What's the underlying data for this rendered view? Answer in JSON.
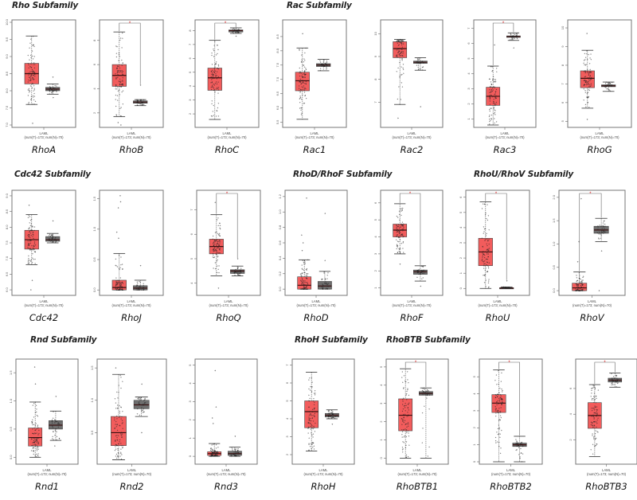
{
  "figure": {
    "colors": {
      "tumor": "#f25c5c",
      "normal": "#6e6e6e",
      "significance": "#e02020",
      "frame": "#777777"
    }
  },
  "subfamilies": [
    {
      "id": "rho",
      "label": "Rho Subfamily"
    },
    {
      "id": "rac",
      "label": "Rac Subfamily"
    },
    {
      "id": "cdc42",
      "label": "Cdc42 Subfamily"
    },
    {
      "id": "rhod",
      "label": "RhoD/RhoF Subfamily"
    },
    {
      "id": "rhou",
      "label": "RhoU/RhoV Subfamily"
    },
    {
      "id": "rnd",
      "label": "Rnd Subfamily"
    },
    {
      "id": "rhoh",
      "label": "RhoH Subfamily"
    },
    {
      "id": "rhobtb",
      "label": "RhoBTB Subfamily"
    }
  ],
  "chart_data": [
    {
      "type": "box",
      "gene": "RhoA",
      "subfamily": "Rho Subfamily",
      "xlabel": "LAML",
      "xsub": "(num(T)=173; num(N)=70)",
      "ylim": [
        7.0,
        10.0
      ],
      "yticks": [
        "7.0",
        "7.5",
        "8.0",
        "8.5",
        "9.0",
        "9.5",
        "10.0"
      ],
      "significant": false,
      "tumor": {
        "min": 7.6,
        "q1": 8.2,
        "median": 8.5,
        "q3": 8.8,
        "max": 9.6,
        "outliers": [
          7.05
        ]
      },
      "normal": {
        "min": 7.9,
        "q1": 8.0,
        "median": 8.05,
        "q3": 8.1,
        "max": 8.2,
        "outliers": [
          8.4,
          7.8
        ]
      }
    },
    {
      "type": "box",
      "gene": "RhoB",
      "subfamily": "Rho Subfamily",
      "xlabel": "LAML",
      "xsub": "(num(T)=173; num(N)=70)",
      "ylim": [
        1.0,
        9.5
      ],
      "yticks": [
        "2",
        "4",
        "6",
        "8"
      ],
      "significant": true,
      "tumor": {
        "min": 1.7,
        "q1": 4.2,
        "median": 5.1,
        "q3": 6.0,
        "max": 8.7,
        "outliers": [
          1.2,
          1.0
        ]
      },
      "normal": {
        "min": 2.6,
        "q1": 2.8,
        "median": 2.9,
        "q3": 3.0,
        "max": 3.1,
        "outliers": [
          4.3
        ]
      }
    },
    {
      "type": "box",
      "gene": "RhoC",
      "subfamily": "Rho Subfamily",
      "xlabel": "LAML",
      "xsub": "(num(T)=173; num(N)=70)",
      "ylim": [
        1.2,
        8.6
      ],
      "yticks": [
        "2",
        "3",
        "4",
        "5",
        "6",
        "7",
        "8"
      ],
      "significant": true,
      "tumor": {
        "min": 1.6,
        "q1": 3.7,
        "median": 4.6,
        "q3": 5.3,
        "max": 7.3,
        "outliers": []
      },
      "normal": {
        "min": 7.8,
        "q1": 7.9,
        "median": 8.0,
        "q3": 8.05,
        "max": 8.2,
        "outliers": [
          7.6
        ]
      }
    },
    {
      "type": "box",
      "gene": "Rac1",
      "subfamily": "Rac Subfamily",
      "xlabel": "LAML",
      "xsub": "(num(T)=173; num(N)=70)",
      "ylim": [
        5.4,
        9.0
      ],
      "yticks": [
        "5.5",
        "6.0",
        "6.5",
        "7.0",
        "7.5",
        "8.0",
        "8.5"
      ],
      "significant": false,
      "tumor": {
        "min": 5.6,
        "q1": 6.6,
        "median": 6.95,
        "q3": 7.25,
        "max": 8.1,
        "outliers": [
          8.6
        ]
      },
      "normal": {
        "min": 7.3,
        "q1": 7.45,
        "median": 7.5,
        "q3": 7.55,
        "max": 7.7,
        "outliers": []
      }
    },
    {
      "type": "box",
      "gene": "Rac2",
      "subfamily": "Rac Subfamily",
      "xlabel": "LAML",
      "xsub": "(num(T)=173; num(N)=70)",
      "ylim": [
        6.0,
        10.5
      ],
      "yticks": [
        "7",
        "8",
        "9",
        "10"
      ],
      "significant": false,
      "tumor": {
        "min": 6.9,
        "q1": 8.95,
        "median": 9.35,
        "q3": 9.65,
        "max": 9.75,
        "outliers": [
          6.3
        ]
      },
      "normal": {
        "min": 8.4,
        "q1": 8.7,
        "median": 8.75,
        "q3": 8.8,
        "max": 8.95,
        "outliers": [
          6.8
        ]
      }
    },
    {
      "type": "box",
      "gene": "Rac3",
      "subfamily": "Rac Subfamily",
      "xlabel": "LAML",
      "xsub": "(num(T)=173; num(N)=70)",
      "ylim": [
        0.6,
        7.4
      ],
      "yticks": [
        "1",
        "2",
        "3",
        "4",
        "5",
        "6",
        "7"
      ],
      "significant": true,
      "tumor": {
        "min": 0.6,
        "q1": 1.9,
        "median": 2.5,
        "q3": 3.1,
        "max": 4.5,
        "outliers": [
          5.9
        ]
      },
      "normal": {
        "min": 6.2,
        "q1": 6.4,
        "median": 6.45,
        "q3": 6.5,
        "max": 6.7,
        "outliers": [
          5.7
        ]
      }
    },
    {
      "type": "box",
      "gene": "RhoG",
      "subfamily": "Rac Subfamily",
      "xlabel": "LAML",
      "xsub": "(num(T)=173; num(N)=70)",
      "ylim": [
        4.8,
        10.3
      ],
      "yticks": [
        "5",
        "6",
        "7",
        "8",
        "9",
        "10"
      ],
      "significant": false,
      "tumor": {
        "min": 5.7,
        "q1": 6.8,
        "median": 7.3,
        "q3": 7.7,
        "max": 8.8,
        "outliers": [
          9.7,
          5.1
        ]
      },
      "normal": {
        "min": 6.6,
        "q1": 6.85,
        "median": 6.9,
        "q3": 6.95,
        "max": 7.1,
        "outliers": []
      }
    },
    {
      "type": "box",
      "gene": "Cdc42",
      "subfamily": "Cdc42 Subfamily",
      "xlabel": "LAML",
      "xsub": "(num(T)=173; num(N)=70)",
      "ylim": [
        5.9,
        9.1
      ],
      "yticks": [
        "6.0",
        "6.5",
        "7.0",
        "7.5",
        "8.0",
        "8.5",
        "9.0"
      ],
      "significant": false,
      "tumor": {
        "min": 6.8,
        "q1": 7.3,
        "median": 7.6,
        "q3": 7.9,
        "max": 8.4,
        "outliers": [
          8.7,
          6.3,
          6.0
        ]
      },
      "normal": {
        "min": 7.5,
        "q1": 7.55,
        "median": 7.6,
        "q3": 7.7,
        "max": 7.8,
        "outliers": [
          8.2
        ]
      }
    },
    {
      "type": "box",
      "gene": "RhoJ",
      "subfamily": "Cdc42 Subfamily",
      "xlabel": "LAML",
      "xsub": "(num(T)=173; num(N)=70)",
      "ylim": [
        -0.05,
        1.6
      ],
      "yticks": [
        "0.0",
        "0.5",
        "1.0",
        "1.5"
      ],
      "significant": false,
      "tumor": {
        "min": 0.0,
        "q1": 0.0,
        "median": 0.04,
        "q3": 0.16,
        "max": 0.6,
        "outliers": [
          1.55,
          1.45,
          1.35,
          0.95,
          0.85
        ]
      },
      "normal": {
        "min": 0.0,
        "q1": 0.0,
        "median": 0.03,
        "q3": 0.07,
        "max": 0.16,
        "outliers": [
          0.4
        ]
      }
    },
    {
      "type": "box",
      "gene": "RhoQ",
      "subfamily": "Cdc42 Subfamily",
      "xlabel": "LAML",
      "xsub": "(num(T)=173; num(N)=70)",
      "ylim": [
        3.6,
        7.7
      ],
      "yticks": [
        "4",
        "5",
        "6",
        "7"
      ],
      "significant": true,
      "tumor": {
        "min": 4.3,
        "q1": 5.2,
        "median": 5.5,
        "q3": 5.8,
        "max": 6.8,
        "outliers": [
          7.3,
          3.8
        ]
      },
      "normal": {
        "min": 4.3,
        "q1": 4.4,
        "median": 4.5,
        "q3": 4.55,
        "max": 4.7,
        "outliers": [
          5.0
        ]
      }
    },
    {
      "type": "box",
      "gene": "RhoD",
      "subfamily": "RhoD/RhoF Subfamily",
      "xlabel": "LAML",
      "xsub": "(num(T)=173; num(N)=70)",
      "ylim": [
        -0.05,
        1.25
      ],
      "yticks": [
        "0.0",
        "0.2",
        "0.4",
        "0.6",
        "0.8",
        "1.0",
        "1.2"
      ],
      "significant": false,
      "tumor": {
        "min": 0.0,
        "q1": 0.0,
        "median": 0.05,
        "q3": 0.16,
        "max": 0.38,
        "outliers": [
          1.18,
          0.7,
          0.6,
          0.5
        ]
      },
      "normal": {
        "min": 0.0,
        "q1": 0.0,
        "median": 0.04,
        "q3": 0.1,
        "max": 0.23,
        "outliers": [
          0.98,
          0.37
        ]
      }
    },
    {
      "type": "box",
      "gene": "RhoF",
      "subfamily": "RhoD/RhoF Subfamily",
      "xlabel": "LAML",
      "xsub": "(num(T)=173; num(N)=70)",
      "ylim": [
        0.7,
        6.6
      ],
      "yticks": [
        "1",
        "2",
        "3",
        "4",
        "5",
        "6"
      ],
      "significant": true,
      "tumor": {
        "min": 3.0,
        "q1": 4.0,
        "median": 4.4,
        "q3": 4.75,
        "max": 5.95,
        "outliers": [
          2.4
        ]
      },
      "normal": {
        "min": 1.4,
        "q1": 1.8,
        "median": 1.95,
        "q3": 2.05,
        "max": 2.3,
        "outliers": [
          1.1
        ]
      }
    },
    {
      "type": "box",
      "gene": "RhoU",
      "subfamily": "RhoU/RhoV Subfamily",
      "xlabel": "LAML",
      "xsub": "(num(T)=173; num(N)=70)",
      "ylim": [
        -0.3,
        6.3
      ],
      "yticks": [
        "0",
        "1",
        "2",
        "3",
        "4",
        "5",
        "6"
      ],
      "significant": true,
      "tumor": {
        "min": 0.0,
        "q1": 1.5,
        "median": 2.4,
        "q3": 3.3,
        "max": 5.7,
        "outliers": []
      },
      "normal": {
        "min": 0.0,
        "q1": 0.0,
        "median": 0.02,
        "q3": 0.05,
        "max": 0.1,
        "outliers": [
          0.5
        ]
      }
    },
    {
      "type": "box",
      "gene": "RhoV",
      "subfamily": "RhoU/RhoV Subfamily",
      "xlabel": "LAML",
      "xsub": "(num(T)=173; num(N)=70)",
      "ylim": [
        -0.05,
        2.1
      ],
      "yticks": [
        "0.0",
        "0.5",
        "1.0",
        "1.5",
        "2.0"
      ],
      "significant": true,
      "tumor": {
        "min": 0.0,
        "q1": 0.0,
        "median": 0.06,
        "q3": 0.16,
        "max": 0.4,
        "outliers": [
          1.97,
          1.05,
          0.62
        ]
      },
      "normal": {
        "min": 1.05,
        "q1": 1.23,
        "median": 1.3,
        "q3": 1.38,
        "max": 1.55,
        "outliers": [
          0.85,
          0.0
        ]
      }
    },
    {
      "type": "box",
      "gene": "Rnd1",
      "subfamily": "Rnd Subfamily",
      "xlabel": "LAML",
      "xsub": "(num(T)=173; num(N)=70)",
      "ylim": [
        -0.08,
        1.7
      ],
      "yticks": [
        "0.0",
        "0.5",
        "1.0",
        "1.5"
      ],
      "significant": false,
      "tumor": {
        "min": 0.0,
        "q1": 0.2,
        "median": 0.35,
        "q3": 0.52,
        "max": 0.98,
        "outliers": [
          1.6,
          1.3
        ]
      },
      "normal": {
        "min": 0.3,
        "q1": 0.5,
        "median": 0.57,
        "q3": 0.65,
        "max": 0.82,
        "outliers": [
          1.08,
          0.2
        ]
      }
    },
    {
      "type": "box",
      "gene": "Rnd2",
      "subfamily": "Rnd Subfamily",
      "xlabel": "LAML",
      "xsub": "(num(T)=173; num(N)=70)",
      "ylim": [
        0.05,
        1.6
      ],
      "yticks": [
        "0.5",
        "1.0",
        "1.5"
      ],
      "significant": false,
      "tumor": {
        "min": 0.08,
        "q1": 0.3,
        "median": 0.5,
        "q3": 0.75,
        "max": 1.4,
        "outliers": [
          1.5
        ]
      },
      "normal": {
        "min": 0.75,
        "q1": 0.87,
        "median": 0.93,
        "q3": 1.0,
        "max": 1.05,
        "outliers": [
          1.25,
          0.5
        ]
      }
    },
    {
      "type": "box",
      "gene": "Rnd3",
      "subfamily": "Rnd Subfamily",
      "xlabel": "LAML",
      "xsub": "(num(T)=173; num(N)=70)",
      "ylim": [
        -0.3,
        5.2
      ],
      "yticks": [
        "0",
        "1",
        "2",
        "3",
        "4",
        "5"
      ],
      "significant": false,
      "tumor": {
        "min": 0.0,
        "q1": 0.05,
        "median": 0.15,
        "q3": 0.25,
        "max": 0.7,
        "outliers": [
          4.7,
          2.7,
          2.1,
          1.8
        ]
      },
      "normal": {
        "min": 0.0,
        "q1": 0.05,
        "median": 0.15,
        "q3": 0.28,
        "max": 0.5,
        "outliers": [
          1.1
        ]
      }
    },
    {
      "type": "box",
      "gene": "RhoH",
      "subfamily": "RhoH Subfamily",
      "xlabel": "LAML",
      "xsub": "(num(T)=173; num(N)=70)",
      "ylim": [
        1.6,
        7.2
      ],
      "yticks": [
        "2",
        "3",
        "4",
        "5",
        "6",
        "7"
      ],
      "significant": false,
      "tumor": {
        "min": 2.2,
        "q1": 3.5,
        "median": 4.4,
        "q3": 5.0,
        "max": 6.6,
        "outliers": []
      },
      "normal": {
        "min": 4.0,
        "q1": 4.1,
        "median": 4.2,
        "q3": 4.3,
        "max": 4.5,
        "outliers": [
          3.7
        ]
      }
    },
    {
      "type": "box",
      "gene": "RhoBTB1",
      "subfamily": "RhoBTB Subfamily",
      "xlabel": "LAML",
      "xsub": "(num(T)=173; num(N)=70)",
      "ylim": [
        -0.2,
        5.3
      ],
      "yticks": [
        "0",
        "1",
        "2",
        "3",
        "4",
        "5"
      ],
      "significant": true,
      "tumor": {
        "min": 0.0,
        "q1": 1.5,
        "median": 2.35,
        "q3": 3.25,
        "max": 4.9,
        "outliers": []
      },
      "normal": {
        "min": 0.0,
        "q1": 3.45,
        "median": 3.55,
        "q3": 3.65,
        "max": 3.85,
        "outliers": []
      }
    },
    {
      "type": "box",
      "gene": "RhoBTB2",
      "subfamily": "RhoBTB Subfamily",
      "xlabel": "LAML",
      "xsub": "(num(T)=173; num(N)=70)",
      "ylim": [
        0.0,
        5.9
      ],
      "yticks": [
        "0",
        "1",
        "2",
        "3",
        "4",
        "5"
      ],
      "significant": true,
      "tumor": {
        "min": 0.0,
        "q1": 2.9,
        "median": 3.45,
        "q3": 3.95,
        "max": 5.4,
        "outliers": [
          0.9
        ]
      },
      "normal": {
        "min": 0.0,
        "q1": 0.9,
        "median": 1.0,
        "q3": 1.1,
        "max": 1.5,
        "outliers": [
          0.2
        ]
      }
    },
    {
      "type": "box",
      "gene": "RhoBTB3",
      "subfamily": "RhoBTB Subfamily",
      "xlabel": "LAML",
      "xsub": "(num(T)=173; num(N)=70)",
      "ylim": [
        0.3,
        8.1
      ],
      "yticks": [
        "2",
        "4",
        "6"
      ],
      "significant": true,
      "tumor": {
        "min": 0.7,
        "q1": 2.9,
        "median": 3.9,
        "q3": 4.9,
        "max": 6.3,
        "outliers": []
      },
      "normal": {
        "min": 6.1,
        "q1": 6.5,
        "median": 6.65,
        "q3": 6.8,
        "max": 7.2,
        "outliers": []
      }
    }
  ]
}
